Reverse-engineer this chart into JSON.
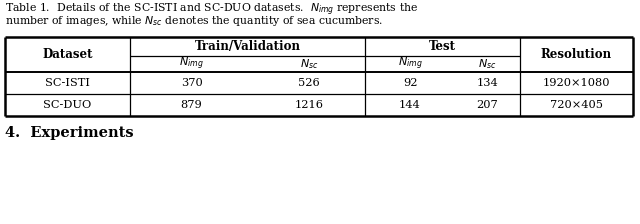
{
  "rows": [
    [
      "SC-ISTI",
      "370",
      "526",
      "92",
      "134",
      "1920×1080"
    ],
    [
      "SC-DUO",
      "879",
      "1216",
      "144",
      "207",
      "720×405"
    ]
  ],
  "bg_color": "#ffffff",
  "text_color": "#000000",
  "line_color": "#000000"
}
